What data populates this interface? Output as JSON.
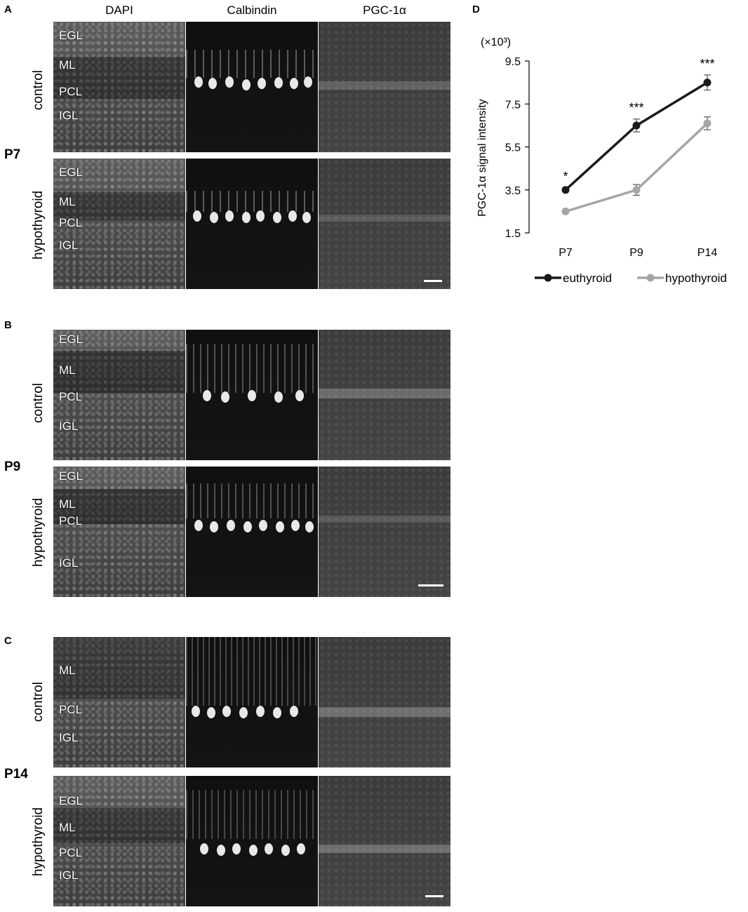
{
  "panel_labels": {
    "a": "A",
    "b": "B",
    "c": "C",
    "d": "D"
  },
  "column_headers": [
    "DAPI",
    "Calbindin",
    "PGC-1α"
  ],
  "stages": [
    "P7",
    "P9",
    "P14"
  ],
  "conditions": {
    "control": "control",
    "hypothyroid": "hypothyroid"
  },
  "layers": {
    "egl": "EGL",
    "ml": "ML",
    "pcl": "PCL",
    "igl": "IGL"
  },
  "chart_data": {
    "type": "line",
    "x": [
      "P7",
      "P9",
      "P14"
    ],
    "ylabel": "PGC-1α signal intensity",
    "y_unit": "(×10³)",
    "ylim": [
      1.5,
      9.5
    ],
    "yticks": [
      "9.5",
      "7.5",
      "5.5",
      "3.5",
      "1.5"
    ],
    "series": [
      {
        "name": "euthyroid",
        "values": [
          3.5,
          6.5,
          8.5
        ],
        "errors": [
          0.1,
          0.3,
          0.35
        ],
        "color": "#1a1a1a"
      },
      {
        "name": "hypothyroid",
        "values": [
          2.5,
          3.5,
          6.6
        ],
        "errors": [
          0.1,
          0.25,
          0.3
        ],
        "color": "#a6a6a6"
      }
    ],
    "significance": [
      "*",
      "***",
      "***"
    ]
  }
}
